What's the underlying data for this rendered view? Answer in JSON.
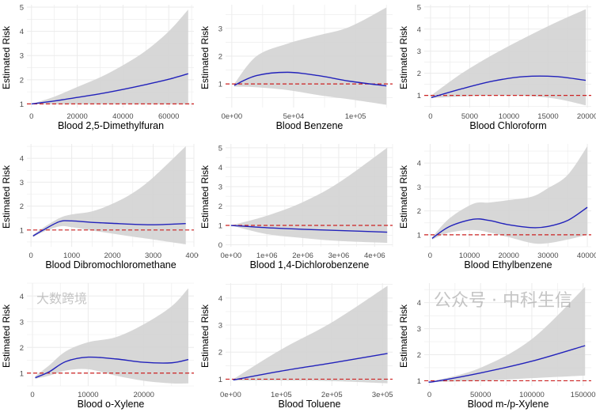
{
  "chart_data": [
    {
      "type": "line",
      "xlabel": "Blood 2,5-Dimethylfuran",
      "ylabel": "Estimated Risk",
      "xlim": [
        -2000,
        71000
      ],
      "ylim": [
        0.85,
        5.1
      ],
      "xticks": [
        0,
        20000,
        40000,
        60000
      ],
      "xtick_labels": [
        "0",
        "20000",
        "40000",
        "60000"
      ],
      "yticks": [
        1,
        2,
        3,
        4,
        5
      ],
      "x": [
        0,
        10000,
        20000,
        30000,
        40000,
        50000,
        60000,
        68500
      ],
      "est": [
        1,
        1.12,
        1.27,
        1.42,
        1.6,
        1.8,
        2.02,
        2.25
      ],
      "lower": [
        0.99,
        0.99,
        0.99,
        0.99,
        0.99,
        0.99,
        0.99,
        0.99
      ],
      "upper": [
        1,
        1.3,
        1.7,
        2.1,
        2.6,
        3.2,
        4.0,
        4.9
      ],
      "ref": 1
    },
    {
      "type": "line",
      "xlabel": "Blood Benzene",
      "ylabel": "Estimated Risk",
      "xlim": [
        -5000,
        130000
      ],
      "ylim": [
        0.15,
        3.85
      ],
      "xticks": [
        0,
        50000,
        100000
      ],
      "xtick_labels": [
        "0e+00",
        "5e+04",
        "1e+05"
      ],
      "yticks": [
        1,
        2,
        3
      ],
      "x": [
        2000,
        20000,
        45000,
        70000,
        95000,
        125000
      ],
      "est": [
        0.95,
        1.3,
        1.42,
        1.3,
        1.1,
        0.93
      ],
      "lower": [
        0.9,
        0.88,
        0.78,
        0.6,
        0.45,
        0.25
      ],
      "upper": [
        1,
        2.0,
        2.45,
        2.75,
        3.05,
        3.75
      ],
      "ref": 1
    },
    {
      "type": "line",
      "xlabel": "Blood Chloroform",
      "ylabel": "Estimated Risk",
      "xlim": [
        -800,
        20500
      ],
      "ylim": [
        0.45,
        5.1
      ],
      "xticks": [
        0,
        5000,
        10000,
        15000,
        20000
      ],
      "xtick_labels": [
        "0",
        "5000",
        "10000",
        "15000",
        "20000"
      ],
      "yticks": [
        1,
        2,
        3,
        4,
        5
      ],
      "x": [
        100,
        4000,
        8000,
        12000,
        16000,
        19800
      ],
      "est": [
        0.9,
        1.3,
        1.65,
        1.85,
        1.85,
        1.68
      ],
      "lower": [
        0.88,
        0.95,
        1.0,
        0.98,
        0.85,
        0.55
      ],
      "upper": [
        1,
        2.0,
        2.85,
        3.6,
        4.3,
        4.9
      ],
      "ref": 1
    },
    {
      "type": "line",
      "xlabel": "Blood Dibromochloromethane",
      "ylabel": "Estimated Risk",
      "xlim": [
        -100,
        4000
      ],
      "ylim": [
        0.3,
        4.6
      ],
      "xticks": [
        0,
        1000,
        2000,
        3000,
        4000
      ],
      "xtick_labels": [
        "0",
        "1000",
        "2000",
        "3000",
        "4000"
      ],
      "yticks": [
        1,
        2,
        3,
        4
      ],
      "x": [
        50,
        300,
        700,
        1000,
        1500,
        2000,
        2500,
        3000,
        3800
      ],
      "est": [
        0.75,
        1.0,
        1.35,
        1.38,
        1.32,
        1.28,
        1.24,
        1.22,
        1.27
      ],
      "lower": [
        0.7,
        0.92,
        1.15,
        1.12,
        0.98,
        0.85,
        0.72,
        0.6,
        0.4
      ],
      "upper": [
        0.8,
        1.1,
        1.5,
        1.65,
        1.78,
        2.1,
        2.55,
        3.2,
        4.5
      ],
      "ref": 1
    },
    {
      "type": "line",
      "xlabel": "Blood 1,4-Dichlorobenzene",
      "ylabel": "Estimated Risk",
      "xlim": [
        -150000,
        4500000
      ],
      "ylim": [
        -0.1,
        5.2
      ],
      "xticks": [
        0,
        1000000,
        2000000,
        3000000,
        4000000
      ],
      "xtick_labels": [
        "0e+00",
        "1e+06",
        "2e+06",
        "3e+06",
        "4e+06"
      ],
      "yticks": [
        0,
        1,
        2,
        3,
        4,
        5
      ],
      "x": [
        0,
        1000000,
        2000000,
        3000000,
        4350000
      ],
      "est": [
        1,
        0.88,
        0.8,
        0.74,
        0.65
      ],
      "lower": [
        1,
        0.55,
        0.35,
        0.2,
        0.1
      ],
      "upper": [
        1,
        1.5,
        2.2,
        3.2,
        5.0
      ],
      "ref": 1
    },
    {
      "type": "line",
      "xlabel": "Blood Ethylbenzene",
      "ylabel": "Estimated Risk",
      "xlim": [
        -1500,
        41000
      ],
      "ylim": [
        0.5,
        4.8
      ],
      "xticks": [
        0,
        10000,
        20000,
        30000,
        40000
      ],
      "xtick_labels": [
        "0",
        "10000",
        "20000",
        "30000",
        "40000"
      ],
      "yticks": [
        1,
        2,
        3,
        4
      ],
      "x": [
        500,
        5000,
        11000,
        15000,
        20000,
        26000,
        30000,
        35000,
        40000
      ],
      "est": [
        0.85,
        1.35,
        1.65,
        1.6,
        1.42,
        1.3,
        1.35,
        1.6,
        2.15
      ],
      "lower": [
        0.8,
        1.1,
        1.2,
        1.1,
        0.9,
        0.65,
        0.65,
        0.8,
        1.0
      ],
      "upper": [
        0.9,
        1.7,
        2.3,
        2.35,
        2.45,
        2.6,
        2.95,
        3.5,
        4.7
      ],
      "ref": 1
    },
    {
      "type": "line",
      "xlabel": "Blood o-Xylene",
      "ylabel": "Estimated Risk",
      "xlim": [
        -1000,
        29000
      ],
      "ylim": [
        0.5,
        4.5
      ],
      "xticks": [
        0,
        10000,
        20000
      ],
      "xtick_labels": [
        "0",
        "10000",
        "20000"
      ],
      "yticks": [
        1,
        2,
        3,
        4
      ],
      "x": [
        500,
        3000,
        6000,
        10000,
        15000,
        20000,
        25000,
        28000
      ],
      "est": [
        0.82,
        1.05,
        1.45,
        1.62,
        1.55,
        1.42,
        1.4,
        1.53
      ],
      "lower": [
        0.78,
        0.9,
        1.1,
        1.15,
        0.9,
        0.7,
        0.6,
        0.6
      ],
      "upper": [
        0.88,
        1.3,
        1.85,
        2.2,
        2.4,
        2.9,
        3.6,
        4.3
      ],
      "ref": 1
    },
    {
      "type": "line",
      "xlabel": "Blood Toluene",
      "ylabel": "Estimated Risk",
      "xlim": [
        -10000,
        320000
      ],
      "ylim": [
        0.75,
        4.55
      ],
      "xticks": [
        0,
        100000,
        200000,
        300000
      ],
      "xtick_labels": [
        "0e+00",
        "1e+05",
        "2e+05",
        "3e+05"
      ],
      "yticks": [
        1,
        2,
        3,
        4
      ],
      "x": [
        5000,
        100000,
        200000,
        310000
      ],
      "est": [
        0.97,
        1.3,
        1.6,
        1.95
      ],
      "lower": [
        0.95,
        0.95,
        0.93,
        0.85
      ],
      "upper": [
        1,
        2.1,
        3.1,
        4.45
      ],
      "ref": 1
    },
    {
      "type": "line",
      "xlabel": "Blood m-/p-Xylene",
      "ylabel": "Estimated Risk",
      "xlim": [
        -5000,
        158000
      ],
      "ylim": [
        0.8,
        4.75
      ],
      "xticks": [
        0,
        50000,
        100000,
        150000
      ],
      "xtick_labels": [
        "0",
        "50000",
        "100000",
        "150000"
      ],
      "yticks": [
        1,
        2,
        3,
        4
      ],
      "x": [
        0,
        5000,
        50000,
        100000,
        152000
      ],
      "est": [
        0.97,
        0.97,
        1.3,
        1.75,
        2.35
      ],
      "lower": [
        0.95,
        0.95,
        1.0,
        1.1,
        1.2
      ],
      "upper": [
        1,
        1.0,
        1.5,
        2.6,
        4.6
      ],
      "ref": 1
    }
  ],
  "colors": {
    "estimate": "#2222bb",
    "ribbon": "#d3d3d3",
    "reference": "#cc2222",
    "grid": "#ebebeb"
  },
  "watermarks": {
    "left": "大数跨境",
    "right": "公众号 · 中科生信"
  }
}
